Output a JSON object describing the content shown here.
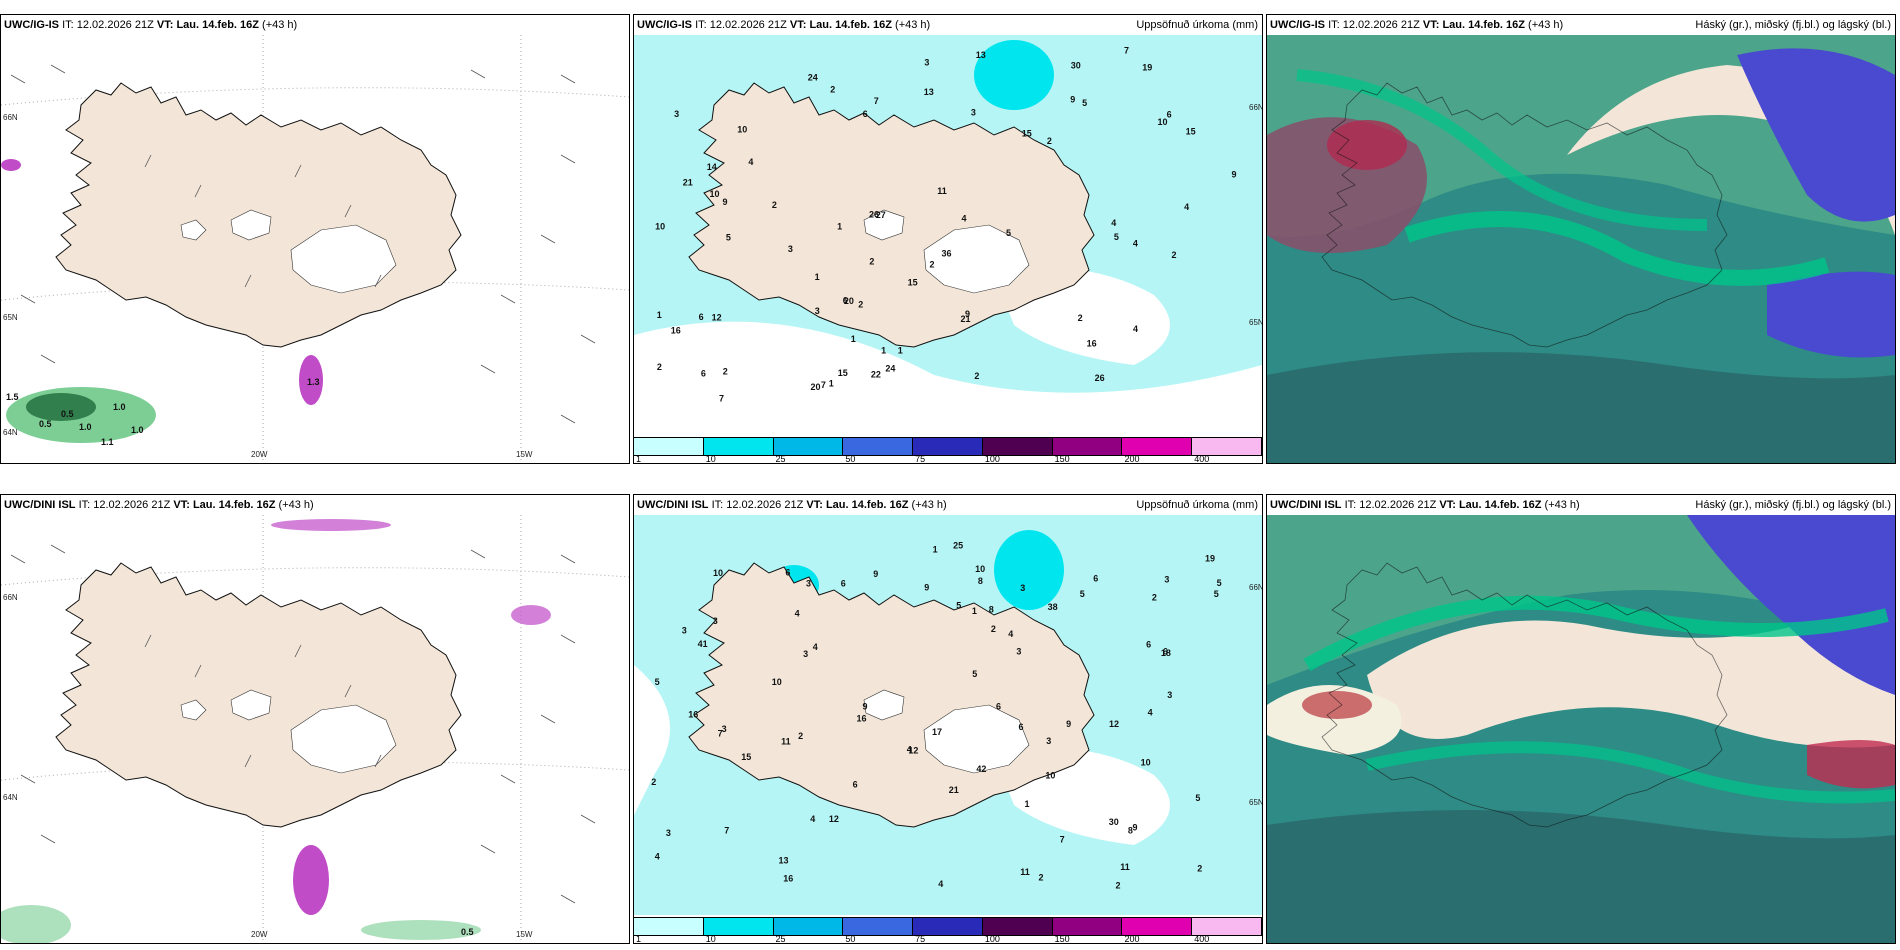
{
  "colors": {
    "land": "#f3e6d8",
    "ice": "#ffffff",
    "ocean_precip": "#b6f5f5",
    "green_wind": "#5cc27a",
    "purple": "#c04cc8",
    "cloud_high": "#2e8b85",
    "cloud_mid": "#00c58a"
  },
  "panels": [
    {
      "model": "UWC/IG-IS",
      "it_label": "IT:",
      "it_value": "12.02.2026 21Z",
      "vt_label": "VT:",
      "vt_value": "Lau. 14.feb. 16Z",
      "lead": "(+43 h)",
      "right_title": "",
      "lat_labels": [
        "66N",
        "65N",
        "64N"
      ],
      "lon_labels": [
        "20W",
        "15W"
      ],
      "wind_values": [
        "0.5",
        "1.0",
        "1.0",
        "1.5",
        "1.1",
        "1.3",
        "1.0",
        "0.5"
      ]
    },
    {
      "model": "UWC/IG-IS",
      "it_label": "IT:",
      "it_value": "12.02.2026 21Z",
      "vt_label": "VT:",
      "vt_value": "Lau. 14.feb. 16Z",
      "lead": "(+43 h)",
      "right_title": "Uppsöfnuð úrkoma (mm)",
      "lat_labels": [
        "66N",
        "65N"
      ],
      "precip_values": [
        "4",
        "5",
        "16",
        "6",
        "5",
        "24",
        "20",
        "15",
        "26",
        "13",
        "7",
        "6",
        "12",
        "6",
        "10",
        "9",
        "11",
        "21",
        "24",
        "7",
        "5",
        "16",
        "19",
        "21",
        "26",
        "27",
        "22",
        "10",
        "4",
        "13",
        "4",
        "9",
        "3",
        "4",
        "7",
        "15",
        "2",
        "3",
        "2",
        "1",
        "2",
        "4",
        "6",
        "4",
        "2",
        "2",
        "2",
        "3",
        "2",
        "1",
        "2",
        "1",
        "6",
        "3",
        "2",
        "1",
        "1",
        "9",
        "1",
        "10",
        "14",
        "2",
        "3",
        "15",
        "1",
        "7",
        "9",
        "10",
        "5",
        "2",
        "30",
        "15",
        "20",
        "36"
      ],
      "colorbar": {
        "labels": [
          "1",
          "10",
          "25",
          "50",
          "75",
          "100",
          "150",
          "200",
          "400"
        ],
        "colors": [
          "#c8ffff",
          "#00e5ee",
          "#00b8e8",
          "#3a68e0",
          "#2a2ab8",
          "#500050",
          "#900080",
          "#e000b0",
          "#f8b8f0"
        ]
      }
    },
    {
      "model": "UWC/IG-IS",
      "it_label": "IT:",
      "it_value": "12.02.2026 21Z",
      "vt_label": "VT:",
      "vt_value": "Lau. 14.feb. 16Z",
      "lead": "(+43 h)",
      "right_title": "Háský (gr.), miðský (fj.bl.) og lágský (bl.)"
    },
    {
      "model": "UWC/DINI ISL",
      "it_label": "IT:",
      "it_value": "12.02.2026 21Z",
      "vt_label": "VT:",
      "vt_value": "Lau. 14.feb. 16Z",
      "lead": "(+43 h)",
      "right_title": "",
      "lat_labels": [
        "66N",
        "64N"
      ],
      "lon_labels": [
        "20W",
        "15W"
      ],
      "wind_values": [
        "0.5"
      ]
    },
    {
      "model": "UWC/DINI ISL",
      "it_label": "IT:",
      "it_value": "12.02.2026 21Z",
      "vt_label": "VT:",
      "vt_value": "Lau. 14.feb. 16Z",
      "lead": "(+43 h)",
      "right_title": "Uppsöfnuð úrkoma (mm)",
      "lat_labels": [
        "66N",
        "65N"
      ],
      "precip_values": [
        "6",
        "4",
        "5",
        "5",
        "3",
        "15",
        "6",
        "3",
        "8",
        "9",
        "4",
        "5",
        "3",
        "4",
        "7",
        "16",
        "10",
        "5",
        "5",
        "11",
        "25",
        "10",
        "11",
        "7",
        "4",
        "19",
        "18",
        "38",
        "16",
        "9",
        "9",
        "2",
        "1",
        "6",
        "17",
        "10",
        "8",
        "11",
        "6",
        "6",
        "4",
        "9",
        "8",
        "12",
        "5",
        "1",
        "2",
        "3",
        "3",
        "3",
        "6",
        "3",
        "5",
        "4",
        "3",
        "2",
        "2",
        "6",
        "3",
        "6",
        "4",
        "2",
        "2",
        "2",
        "1",
        "21",
        "3",
        "12",
        "13",
        "10",
        "9",
        "4",
        "10",
        "7",
        "3",
        "12",
        "42",
        "41",
        "30",
        "16"
      ],
      "colorbar": {
        "labels": [
          "1",
          "10",
          "25",
          "50",
          "75",
          "100",
          "150",
          "200",
          "400"
        ],
        "colors": [
          "#c8ffff",
          "#00e5ee",
          "#00b8e8",
          "#3a68e0",
          "#2a2ab8",
          "#500050",
          "#900080",
          "#e000b0",
          "#f8b8f0"
        ]
      }
    },
    {
      "model": "UWC/DINI ISL",
      "it_label": "IT:",
      "it_value": "12.02.2026 21Z",
      "vt_label": "VT:",
      "vt_value": "Lau. 14.feb. 16Z",
      "lead": "(+43 h)",
      "right_title": "Háský (gr.), miðský (fj.bl.) og lágský (bl.)"
    }
  ]
}
